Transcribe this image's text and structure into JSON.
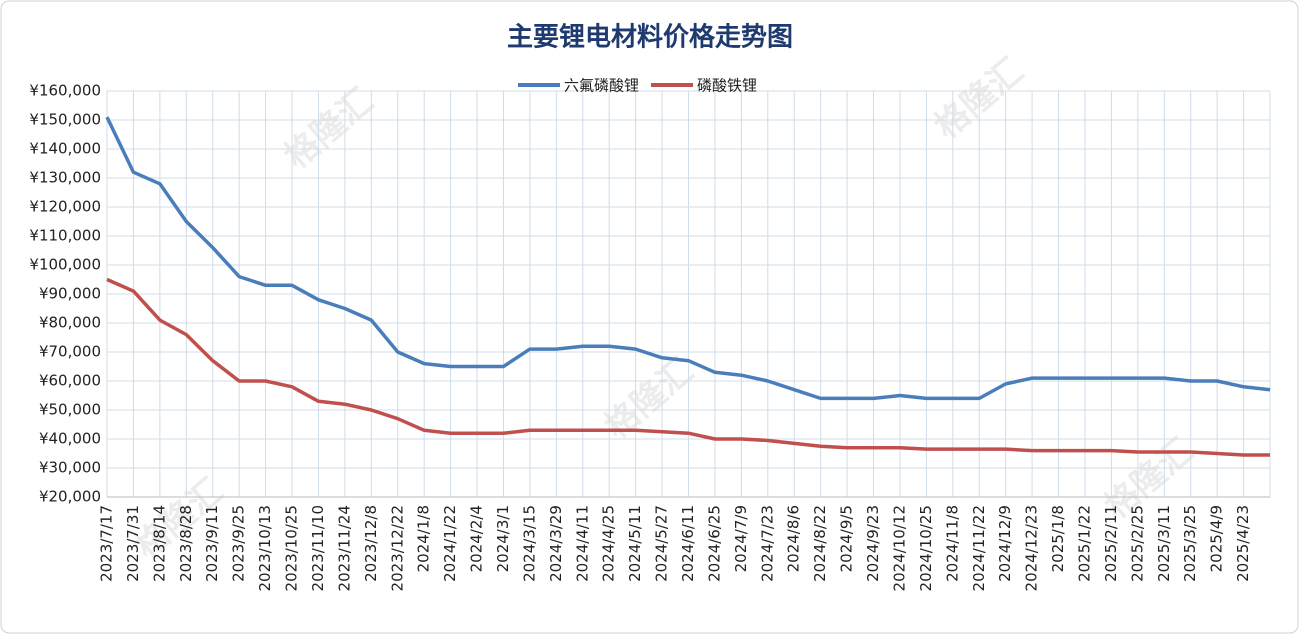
{
  "chart_data": {
    "type": "line",
    "title": "主要锂电材料价格走势图",
    "watermark": "格隆汇",
    "categories": [
      "2023/7/17",
      "2023/7/31",
      "2023/8/14",
      "2023/8/28",
      "2023/9/11",
      "2023/9/25",
      "2023/10/13",
      "2023/10/25",
      "2023/11/10",
      "2023/11/24",
      "2023/12/8",
      "2023/12/22",
      "2024/1/8",
      "2024/1/22",
      "2024/2/4",
      "2024/3/1",
      "2024/3/15",
      "2024/3/29",
      "2024/4/11",
      "2024/4/25",
      "2024/5/11",
      "2024/5/27",
      "2024/6/11",
      "2024/6/25",
      "2024/7/9",
      "2024/7/23",
      "2024/8/6",
      "2024/8/22",
      "2024/9/5",
      "2024/9/23",
      "2024/10/12",
      "2024/10/25",
      "2024/11/8",
      "2024/11/22",
      "2024/12/9",
      "2024/12/23",
      "2025/1/8",
      "2025/1/22",
      "2025/2/11",
      "2025/2/25",
      "2025/3/11",
      "2025/3/25",
      "2025/4/9",
      "2025/4/23",
      null
    ],
    "series": [
      {
        "name": "六氟磷酸锂",
        "color": "#4a7ebb",
        "values": [
          151000,
          132000,
          128000,
          115000,
          106000,
          96000,
          93000,
          93000,
          88000,
          85000,
          81000,
          70000,
          66000,
          65000,
          65000,
          65000,
          71000,
          71000,
          72000,
          72000,
          71000,
          68000,
          67000,
          63000,
          62000,
          60000,
          57000,
          54000,
          54000,
          54000,
          55000,
          54000,
          54000,
          54000,
          59000,
          61000,
          61000,
          61000,
          61000,
          61000,
          61000,
          60000,
          60000,
          58000,
          57000
        ]
      },
      {
        "name": "磷酸铁锂",
        "color": "#c0504d",
        "values": [
          95000,
          91000,
          81000,
          76000,
          67000,
          60000,
          60000,
          58000,
          53000,
          52000,
          50000,
          47000,
          43000,
          42000,
          42000,
          42000,
          43000,
          43000,
          43000,
          43000,
          43000,
          42500,
          42000,
          40000,
          40000,
          39500,
          38500,
          37500,
          37000,
          37000,
          37000,
          36500,
          36500,
          36500,
          36500,
          36000,
          36000,
          36000,
          36000,
          35500,
          35500,
          35500,
          35000,
          34500,
          34500
        ]
      }
    ],
    "ylim": [
      20000,
      160000
    ],
    "yticks": [
      {
        "value": 20000,
        "label": "¥20,000"
      },
      {
        "value": 30000,
        "label": "¥30,000"
      },
      {
        "value": 40000,
        "label": "¥40,000"
      },
      {
        "value": 50000,
        "label": "¥50,000"
      },
      {
        "value": 60000,
        "label": "¥60,000"
      },
      {
        "value": 70000,
        "label": "¥70,000"
      },
      {
        "value": 80000,
        "label": "¥80,000"
      },
      {
        "value": 90000,
        "label": "¥90,000"
      },
      {
        "value": 100000,
        "label": "¥100,000"
      },
      {
        "value": 110000,
        "label": "¥110,000"
      },
      {
        "value": 120000,
        "label": "¥120,000"
      },
      {
        "value": 130000,
        "label": "¥130,000"
      },
      {
        "value": 140000,
        "label": "¥140,000"
      },
      {
        "value": 150000,
        "label": "¥150,000"
      },
      {
        "value": 160000,
        "label": "¥160,000"
      }
    ],
    "grid": true,
    "legend": "top"
  }
}
